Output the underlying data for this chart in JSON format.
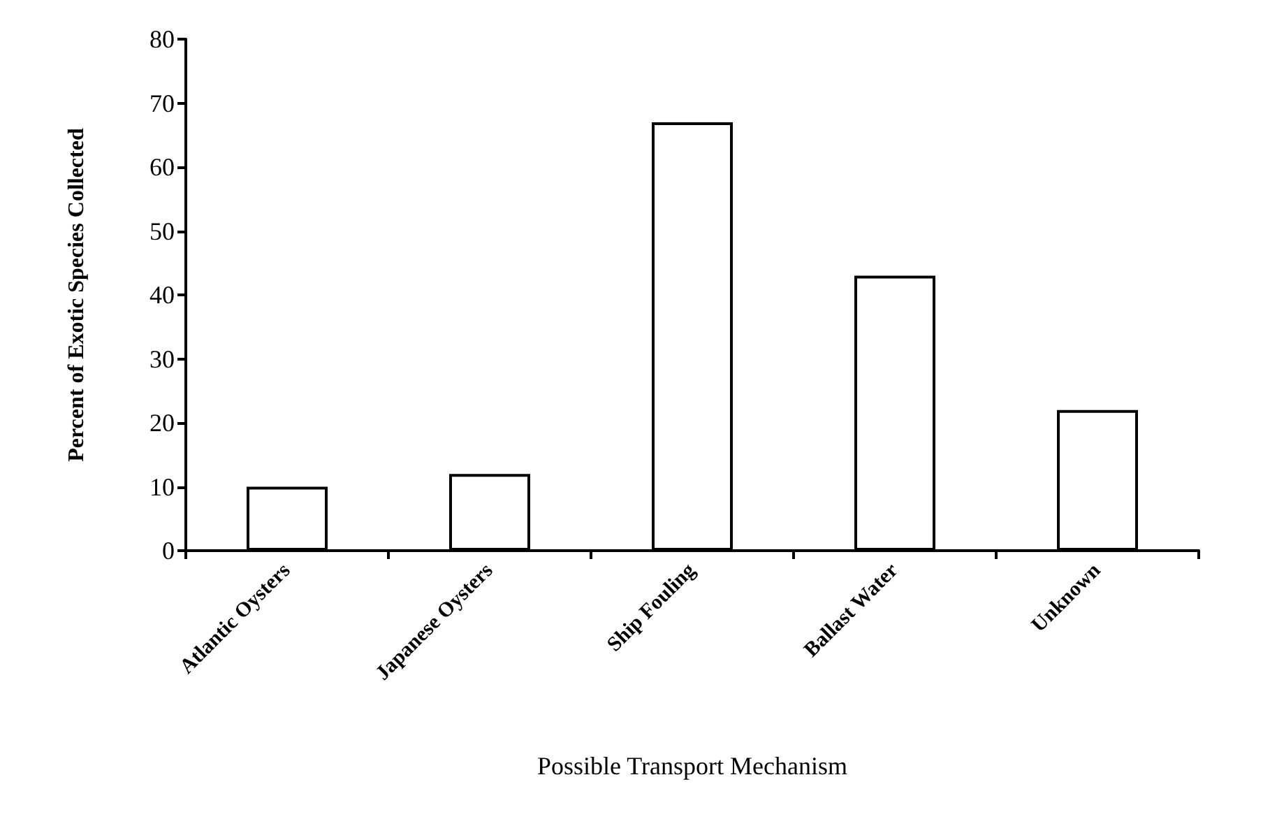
{
  "chart_data": {
    "type": "bar",
    "xlabel": "Possible Transport Mechanism",
    "ylabel": "Percent of Exotic Species Collected",
    "categories": [
      "Atlantic Oysters",
      "Japanese Oysters",
      "Ship Fouling",
      "Ballast Water",
      "Unknown"
    ],
    "values": [
      10,
      12,
      67,
      43,
      22
    ],
    "color": "#ffffff",
    "ylim": [
      0,
      80
    ],
    "yticks": [
      0,
      10,
      20,
      30,
      40,
      50,
      60,
      70,
      80
    ],
    "grid": false
  }
}
